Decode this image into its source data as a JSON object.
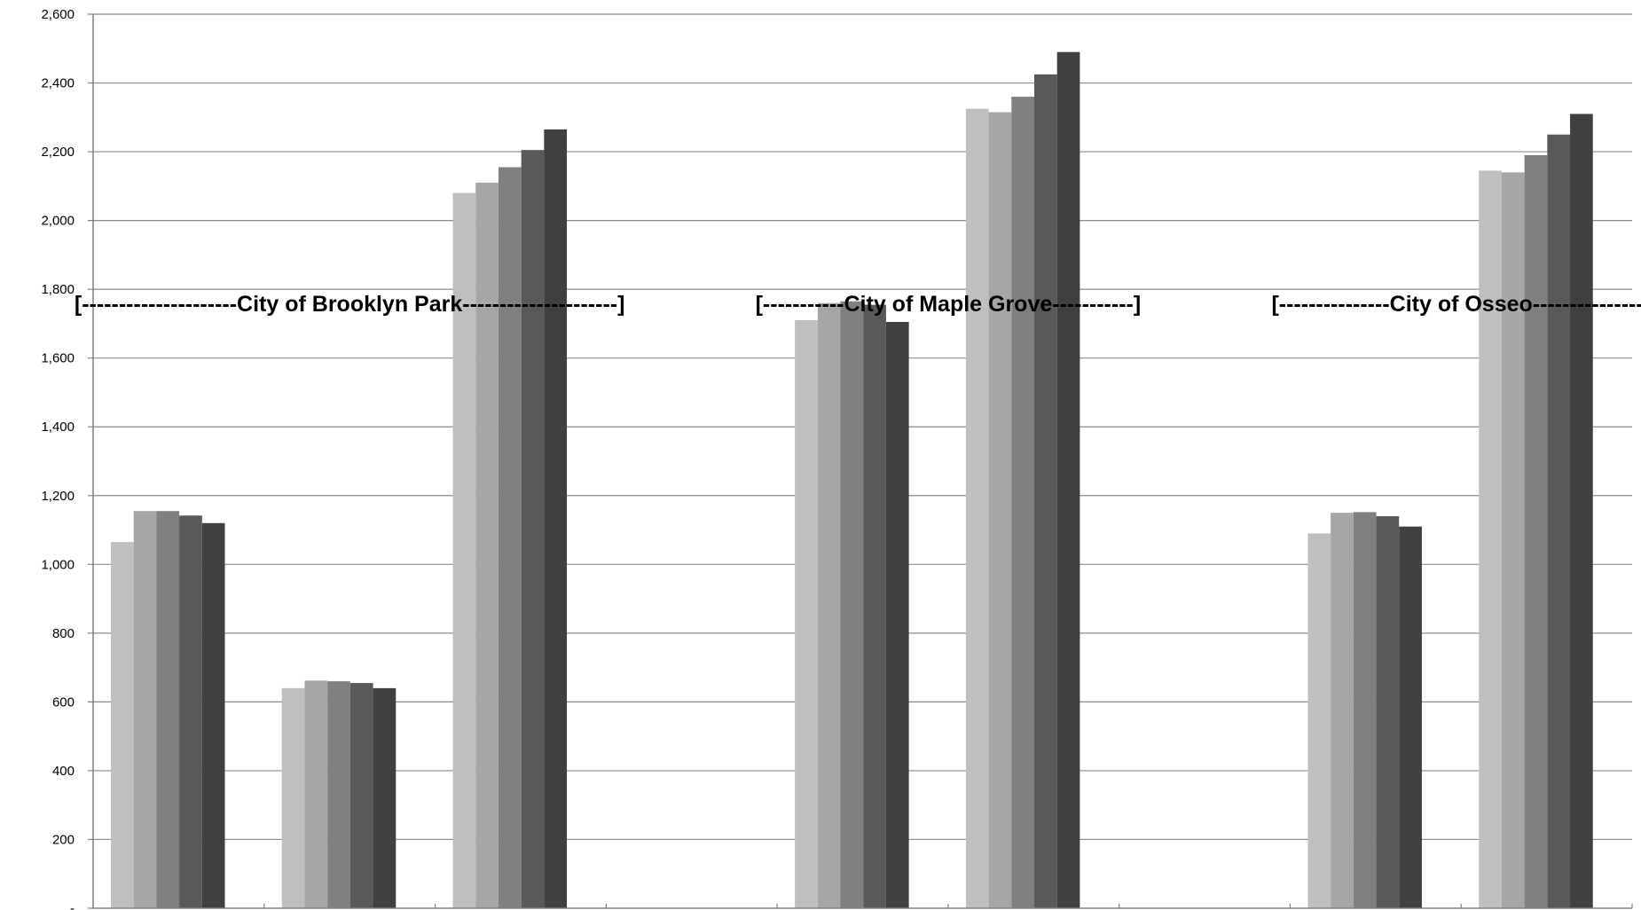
{
  "chart_data": {
    "type": "bar",
    "title": "",
    "xlabel": "",
    "ylabel": "",
    "ylim": [
      0,
      2600
    ],
    "yticks": [
      {
        "value": 0,
        "label": "-"
      },
      {
        "value": 200,
        "label": "200"
      },
      {
        "value": 400,
        "label": "400"
      },
      {
        "value": 600,
        "label": "600"
      },
      {
        "value": 800,
        "label": "800"
      },
      {
        "value": 1000,
        "label": "1,000"
      },
      {
        "value": 1200,
        "label": "1,200"
      },
      {
        "value": 1400,
        "label": "1,400"
      },
      {
        "value": 1600,
        "label": "1,600"
      },
      {
        "value": 1800,
        "label": "1,800"
      },
      {
        "value": 2000,
        "label": "2,000"
      },
      {
        "value": 2200,
        "label": "2,200"
      },
      {
        "value": 2400,
        "label": "2,400"
      },
      {
        "value": 2600,
        "label": "2,600"
      }
    ],
    "grid": true,
    "legend": "none",
    "category_count": 9,
    "series_colors": [
      "#bfbfbf",
      "#a6a6a6",
      "#808080",
      "#595959",
      "#404040"
    ],
    "series": [
      {
        "values": [
          1065,
          640,
          2080,
          null,
          1710,
          2325,
          null,
          1090,
          2145
        ]
      },
      {
        "values": [
          1155,
          662,
          2110,
          null,
          1760,
          2315,
          null,
          1150,
          2140
        ]
      },
      {
        "values": [
          1155,
          660,
          2155,
          null,
          1765,
          2360,
          null,
          1152,
          2190
        ]
      },
      {
        "values": [
          1142,
          655,
          2205,
          null,
          1755,
          2425,
          null,
          1140,
          2250
        ]
      },
      {
        "values": [
          1120,
          640,
          2265,
          null,
          1705,
          2490,
          null,
          1110,
          2310
        ]
      }
    ],
    "group_labels": [
      {
        "text": "[---------------------City of Brooklyn Park---------------------]",
        "start_category": 0,
        "end_category": 2
      },
      {
        "text": "[-----------City of Maple Grove-----------]",
        "start_category": 4,
        "end_category": 5
      },
      {
        "text": "[---------------City of Osseo---------------]",
        "start_category": 7,
        "end_category": 8
      }
    ]
  }
}
